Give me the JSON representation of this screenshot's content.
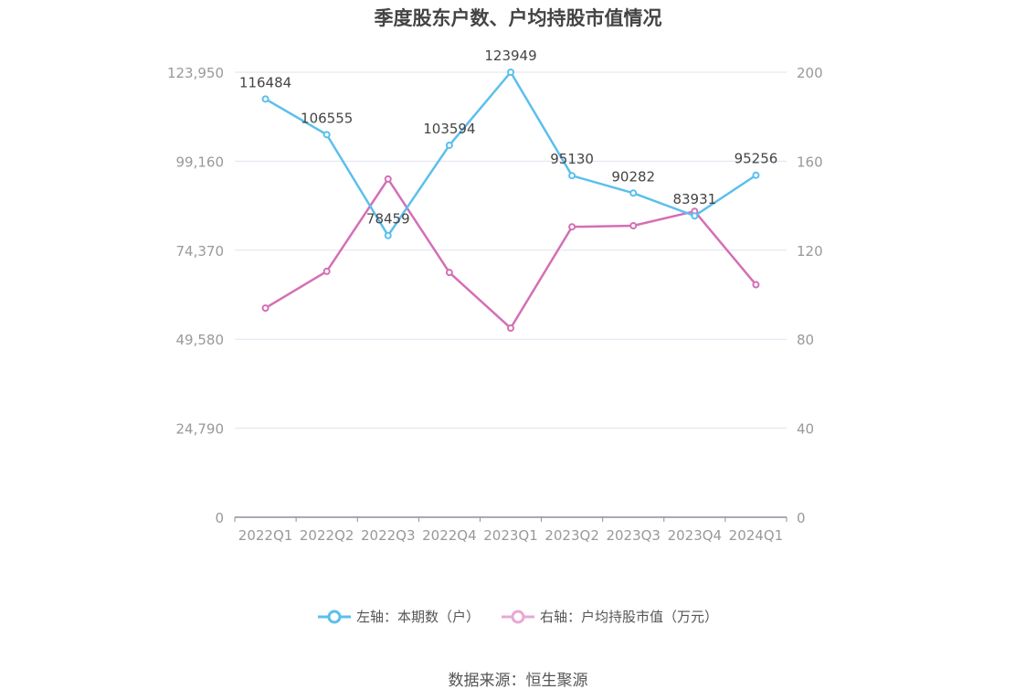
{
  "title": "季度股东户数、户均持股市值情况",
  "source": "数据来源：恒生聚源",
  "legend": [
    {
      "label": "左轴：本期数（户）",
      "color": "#5bbfed"
    },
    {
      "label": "右轴：户均持股市值（万元）",
      "color": "#e8a9d4"
    }
  ],
  "chart_data": {
    "type": "line",
    "categories": [
      "2022Q1",
      "2022Q2",
      "2022Q3",
      "2022Q4",
      "2023Q1",
      "2023Q2",
      "2023Q3",
      "2023Q4",
      "2024Q1"
    ],
    "y_left": {
      "min": 0,
      "max": 123950,
      "ticks": [
        "0",
        "24,790",
        "49,580",
        "74,370",
        "99,160",
        "123,950"
      ]
    },
    "y_right": {
      "min": 0,
      "max": 200,
      "ticks": [
        "0",
        "40",
        "80",
        "120",
        "160",
        "200"
      ]
    },
    "grid": true,
    "legend_position": "bottom",
    "series": [
      {
        "name": "左轴：本期数（户）",
        "axis": "left",
        "color": "#5bbfed",
        "values": [
          116484,
          106555,
          78459,
          103594,
          123949,
          95130,
          90282,
          83931,
          95256
        ],
        "labels": [
          "116484",
          "106555",
          "78459",
          "103594",
          "123949",
          "95130",
          "90282",
          "83931",
          "95256"
        ]
      },
      {
        "name": "右轴：户均持股市值（万元）",
        "axis": "right",
        "color": "#d46fb5",
        "values": [
          94,
          110.5,
          152,
          110,
          85,
          130.5,
          131,
          137.5,
          104.5
        ]
      }
    ]
  }
}
